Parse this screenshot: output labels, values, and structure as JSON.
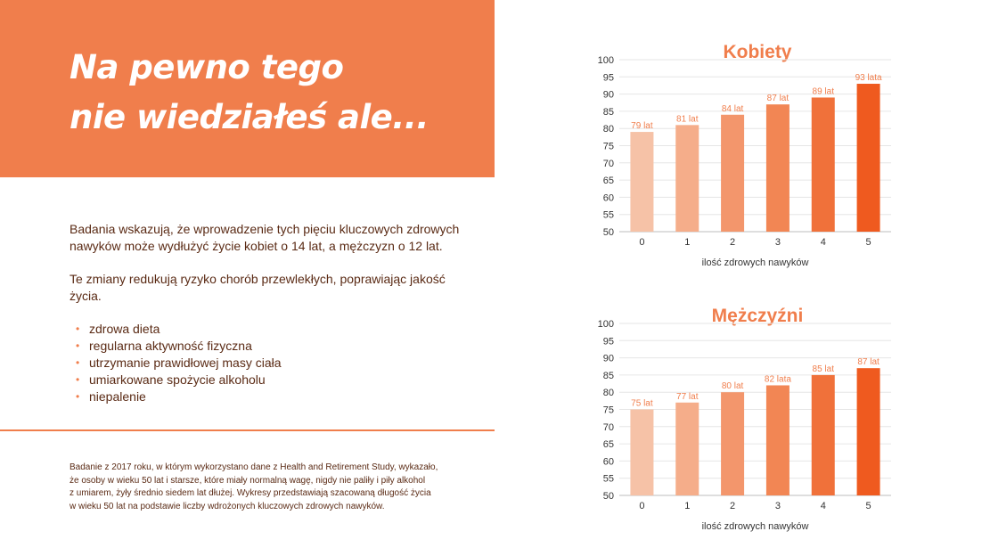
{
  "hero": {
    "title_line1": "Na pewno tego",
    "title_line2": "nie wiedziałeś ale..."
  },
  "intro": {
    "paragraph1": "Badania wskazują, że wprowadzenie tych pięciu kluczowych zdrowych nawyków może wydłużyć życie kobiet o 14 lat, a mężczyzn o 12 lat.",
    "paragraph2": "Te zmiany redukują ryzyko chorób przewlekłych, poprawiając jakość życia.",
    "habits": [
      "zdrowa dieta",
      "regularna aktywność fizyczna",
      "utrzymanie prawidłowej masy ciała",
      "umiarkowane spożycie alkoholu",
      "niepalenie"
    ]
  },
  "footnote": {
    "lines": [
      "Badanie z 2017 roku, w którym wykorzystano dane z Health and Retirement Study, wykazało,",
      "że osoby w wieku 50 lat i starsze, które miały normalną wagę, nigdy nie paliły i piły alkohol",
      "z umiarem, żyły średnio siedem lat dłużej. Wykresy przedstawiają szacowaną długość życia",
      "w wieku 50 lat na podstawie liczby wdrożonych kluczowych zdrowych nawyków."
    ]
  },
  "colors": {
    "accent": "#f07e4c",
    "text": "#5a2a14",
    "bars": [
      "#f6c2a7",
      "#f5ad8a",
      "#f3966c",
      "#f28654",
      "#f0713a",
      "#ef5a1f"
    ]
  },
  "chart_data": [
    {
      "type": "bar",
      "title": "Kobiety",
      "categories": [
        "0",
        "1",
        "2",
        "3",
        "4",
        "5"
      ],
      "values": [
        79,
        81,
        84,
        87,
        89,
        93
      ],
      "data_labels": [
        "79 lat",
        "81 lat",
        "84 lat",
        "87 lat",
        "89 lat",
        "93 lata"
      ],
      "xlabel": "ilość zdrowych nawyków",
      "ylabel": "",
      "ylim": [
        50,
        100
      ],
      "yticks": [
        50,
        55,
        60,
        65,
        70,
        75,
        80,
        85,
        90,
        95,
        100
      ],
      "grid": true,
      "legend": "none"
    },
    {
      "type": "bar",
      "title": "Mężczyźni",
      "categories": [
        "0",
        "1",
        "2",
        "3",
        "4",
        "5"
      ],
      "values": [
        75,
        77,
        80,
        82,
        85,
        87
      ],
      "data_labels": [
        "75 lat",
        "77 lat",
        "80 lat",
        "82 lata",
        "85 lat",
        "87 lat"
      ],
      "xlabel": "ilość zdrowych nawyków",
      "ylabel": "",
      "ylim": [
        50,
        100
      ],
      "yticks": [
        50,
        55,
        60,
        65,
        70,
        75,
        80,
        85,
        90,
        95,
        100
      ],
      "grid": true,
      "legend": "none"
    }
  ]
}
